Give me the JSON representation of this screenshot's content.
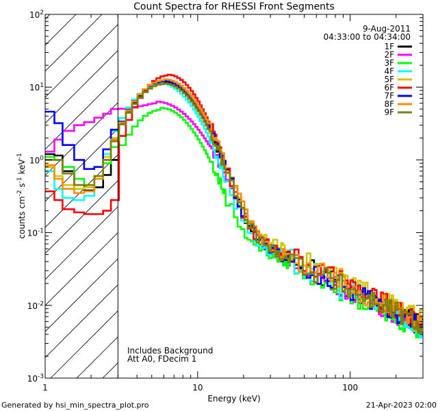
{
  "chart_data": {
    "type": "line",
    "title": "Count Spectra for RHESSI Front Segments",
    "xlabel": "Energy (keV)",
    "ylabel_parts": {
      "base": "counts cm",
      "exp1": "-2",
      "mid": " s",
      "exp2": "-1",
      "mid2": " keV",
      "exp3": "-1"
    },
    "xscale": "log",
    "yscale": "log",
    "xlim": [
      1,
      300
    ],
    "ylim": [
      0.001,
      100
    ],
    "x_ticks": [
      {
        "value": 1,
        "label": "1"
      },
      {
        "value": 10,
        "label": "10"
      },
      {
        "value": 100,
        "label": "100"
      }
    ],
    "y_ticks": [
      {
        "value": 100,
        "base": "10",
        "exp": "2"
      },
      {
        "value": 10,
        "base": "10",
        "exp": "1"
      },
      {
        "value": 1,
        "base": "10",
        "exp": "0"
      },
      {
        "value": 0.1,
        "base": "10",
        "exp": "-1"
      },
      {
        "value": 0.01,
        "base": "10",
        "exp": "-2"
      },
      {
        "value": 0.001,
        "base": "10",
        "exp": "-3"
      }
    ],
    "hatched_region": {
      "from": 1,
      "to": 3
    },
    "vertical_line_at": 3,
    "date": "9-Aug-2011",
    "time_range": "04:33:00 to 04:34:00",
    "annotations": [
      "Includes Background",
      "Att A0, FDecim 1"
    ],
    "legend_position": "top-right",
    "series": [
      {
        "name": "1F",
        "color": "#000000",
        "low": [
          1.2,
          1.15,
          0.7,
          0.45,
          0.38,
          0.42,
          0.62,
          1.0
        ],
        "peak": 11.5,
        "peakE": 6.0,
        "width": 0.1,
        "k": 1.0,
        "noise": 0.3
      },
      {
        "name": "2F",
        "color": "#ff00ff",
        "low": [
          1.3,
          1.9,
          2.5,
          3.0,
          3.3,
          3.8,
          4.3,
          5.0
        ],
        "peak": 6.0,
        "peakE": 5.4,
        "width": 0.12,
        "k": 0.92,
        "noise": 0.25
      },
      {
        "name": "3F",
        "color": "#00ff00",
        "low": [
          1.1,
          1.0,
          0.8,
          0.55,
          0.45,
          0.55,
          0.9,
          1.5
        ],
        "peak": 4.9,
        "peakE": 5.8,
        "width": 0.1,
        "k": 0.85,
        "noise": 0.3
      },
      {
        "name": "4F",
        "color": "#00ffff",
        "low": [
          0.7,
          0.4,
          0.3,
          0.28,
          0.32,
          0.55,
          1.2,
          2.5
        ],
        "peak": 11.0,
        "peakE": 5.7,
        "width": 0.1,
        "k": 0.95,
        "noise": 0.35
      },
      {
        "name": "5F",
        "color": "#d4c400",
        "low": [
          0.8,
          0.6,
          0.45,
          0.4,
          0.42,
          0.6,
          1.1,
          2.0
        ],
        "peak": 12.0,
        "peakE": 6.0,
        "width": 0.1,
        "k": 1.25,
        "noise": 0.25
      },
      {
        "name": "6F",
        "color": "#ff0000",
        "low": [
          0.37,
          0.28,
          0.21,
          0.19,
          0.18,
          0.18,
          0.2,
          0.28
        ],
        "peak": 14.5,
        "peakE": 6.4,
        "width": 0.09,
        "k": 1.1,
        "noise": 0.3
      },
      {
        "name": "7F",
        "color": "#0000ff",
        "low": [
          4.6,
          3.2,
          1.6,
          1.0,
          0.75,
          0.8,
          1.4,
          2.6
        ],
        "peak": 12.0,
        "peakE": 6.0,
        "width": 0.1,
        "k": 0.98,
        "noise": 0.3
      },
      {
        "name": "8F",
        "color": "#ff8c00",
        "low": [
          0.85,
          0.55,
          0.4,
          0.35,
          0.37,
          0.55,
          1.0,
          1.9
        ],
        "peak": 12.5,
        "peakE": 6.1,
        "width": 0.1,
        "k": 1.05,
        "noise": 0.3
      },
      {
        "name": "9F",
        "color": "#808000",
        "low": [
          1.0,
          1.0,
          0.65,
          0.45,
          0.45,
          0.6,
          1.0,
          1.8
        ],
        "peak": 11.0,
        "peakE": 6.0,
        "width": 0.1,
        "k": 1.0,
        "noise": 0.3
      }
    ]
  },
  "footer": {
    "generated_by": "Generated by hsi_min_spectra_plot.pro",
    "timestamp": "21-Apr-2023 02:00"
  }
}
